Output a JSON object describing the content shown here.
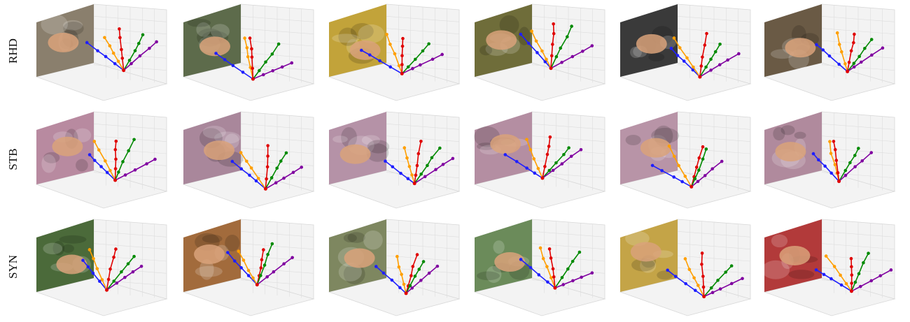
{
  "rows": [
    {
      "label": "RHD",
      "bg": [
        "#8a7f6d",
        "#5d6b4b",
        "#c2a33a",
        "#6f6d3a",
        "#3a3a3a",
        "#6a5a45"
      ]
    },
    {
      "label": "STB",
      "bg": [
        "#b88aa0",
        "#a9879b",
        "#b592a7",
        "#b48ea2",
        "#b894a7",
        "#b08a9d"
      ]
    },
    {
      "label": "SYN",
      "bg": [
        "#4b6a3a",
        "#a26b3c",
        "#7e8760",
        "#6b8b5a",
        "#c4a447",
        "#b23a3a"
      ]
    }
  ],
  "finger_colors": [
    "#1f1fff",
    "#ff9f00",
    "#e00000",
    "#008a00",
    "#8000a0"
  ]
}
